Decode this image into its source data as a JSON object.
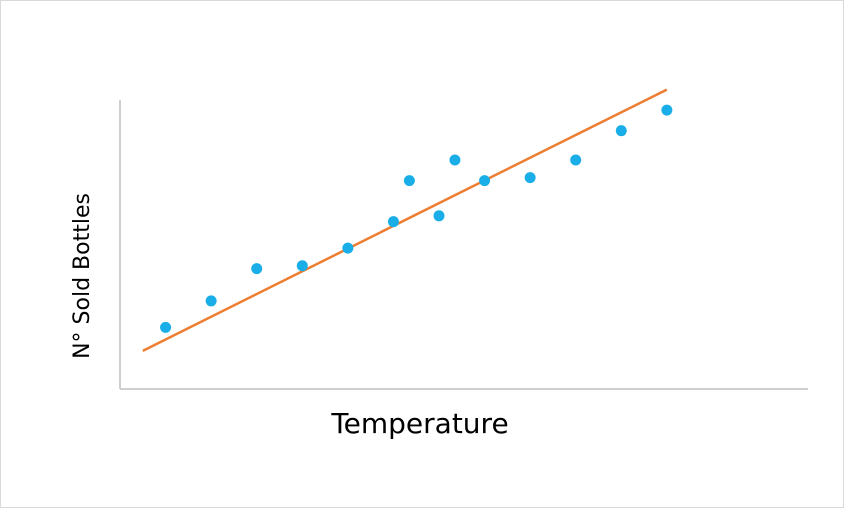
{
  "chart_data": {
    "type": "scatter",
    "xlabel": "Temperature",
    "ylabel": "N° Sold Bottles",
    "xlim": [
      0,
      14
    ],
    "ylim": [
      0,
      10
    ],
    "grid": false,
    "series": [
      {
        "kind": "points",
        "color": "#1aaee8",
        "x": [
          1,
          2,
          3,
          4,
          5,
          6,
          6.35,
          7,
          7.35,
          8,
          9,
          10,
          11,
          12
        ],
        "y": [
          2.1,
          3.0,
          4.1,
          4.2,
          4.8,
          5.7,
          7.1,
          5.9,
          7.8,
          7.1,
          7.2,
          7.8,
          8.8,
          9.5
        ]
      },
      {
        "kind": "trendline",
        "color": "#ed7d31",
        "x": [
          0.5,
          12
        ],
        "y": [
          1.3,
          10.2
        ]
      }
    ]
  }
}
